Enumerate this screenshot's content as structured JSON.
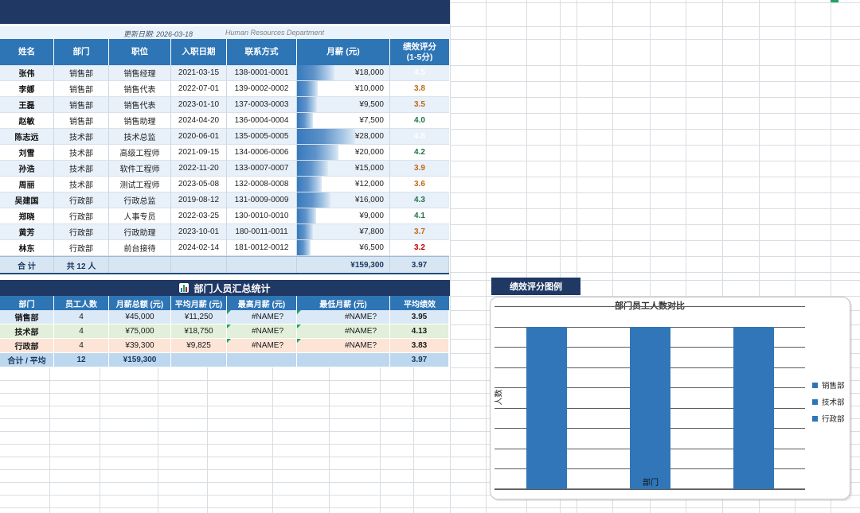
{
  "meta": {
    "update_text": "更新日期: 2026-03-18",
    "org_text": "Human Resources Department"
  },
  "colors": {
    "accent": "#2E75B6",
    "banner": "#1F3864",
    "row_alt": "#E8F0F9",
    "total_row": "#D8E6F3",
    "tint_blue": "#DBE8F6",
    "tint_green": "#E2EFDA",
    "tint_peach": "#FCE4D6",
    "tint_total": "#BDD7EE",
    "score_green": "#1F7246",
    "score_orange": "#BE6A15",
    "score_red": "#C00000",
    "error_marker": "#21A366",
    "bar_color": "#3076B8"
  },
  "employee_table": {
    "columns": [
      "姓名",
      "部门",
      "职位",
      "入职日期",
      "联系方式",
      "月薪 (元)",
      "绩效评分\n(1-5分)"
    ],
    "rows": [
      {
        "name": "张伟",
        "dept": "销售部",
        "title": "销售经理",
        "hire_date": "2021-03-15",
        "phone": "138-0001-0001",
        "salary": "¥18,000",
        "salary_value": 18000,
        "score": "4.5",
        "score_value": 4.5
      },
      {
        "name": "李娜",
        "dept": "销售部",
        "title": "销售代表",
        "hire_date": "2022-07-01",
        "phone": "139-0002-0002",
        "salary": "¥10,000",
        "salary_value": 10000,
        "score": "3.8",
        "score_value": 3.8
      },
      {
        "name": "王磊",
        "dept": "销售部",
        "title": "销售代表",
        "hire_date": "2023-01-10",
        "phone": "137-0003-0003",
        "salary": "¥9,500",
        "salary_value": 9500,
        "score": "3.5",
        "score_value": 3.5
      },
      {
        "name": "赵敏",
        "dept": "销售部",
        "title": "销售助理",
        "hire_date": "2024-04-20",
        "phone": "136-0004-0004",
        "salary": "¥7,500",
        "salary_value": 7500,
        "score": "4.0",
        "score_value": 4.0
      },
      {
        "name": "陈志远",
        "dept": "技术部",
        "title": "技术总监",
        "hire_date": "2020-06-01",
        "phone": "135-0005-0005",
        "salary": "¥28,000",
        "salary_value": 28000,
        "score": "4.8",
        "score_value": 4.8
      },
      {
        "name": "刘雪",
        "dept": "技术部",
        "title": "高级工程师",
        "hire_date": "2021-09-15",
        "phone": "134-0006-0006",
        "salary": "¥20,000",
        "salary_value": 20000,
        "score": "4.2",
        "score_value": 4.2
      },
      {
        "name": "孙浩",
        "dept": "技术部",
        "title": "软件工程师",
        "hire_date": "2022-11-20",
        "phone": "133-0007-0007",
        "salary": "¥15,000",
        "salary_value": 15000,
        "score": "3.9",
        "score_value": 3.9
      },
      {
        "name": "周丽",
        "dept": "技术部",
        "title": "测试工程师",
        "hire_date": "2023-05-08",
        "phone": "132-0008-0008",
        "salary": "¥12,000",
        "salary_value": 12000,
        "score": "3.6",
        "score_value": 3.6
      },
      {
        "name": "吴建国",
        "dept": "行政部",
        "title": "行政总监",
        "hire_date": "2019-08-12",
        "phone": "131-0009-0009",
        "salary": "¥16,000",
        "salary_value": 16000,
        "score": "4.3",
        "score_value": 4.3
      },
      {
        "name": "郑晓",
        "dept": "行政部",
        "title": "人事专员",
        "hire_date": "2022-03-25",
        "phone": "130-0010-0010",
        "salary": "¥9,000",
        "salary_value": 9000,
        "score": "4.1",
        "score_value": 4.1
      },
      {
        "name": "黄芳",
        "dept": "行政部",
        "title": "行政助理",
        "hire_date": "2023-10-01",
        "phone": "180-0011-0011",
        "salary": "¥7,800",
        "salary_value": 7800,
        "score": "3.7",
        "score_value": 3.7
      },
      {
        "name": "林东",
        "dept": "行政部",
        "title": "前台接待",
        "hire_date": "2024-02-14",
        "phone": "181-0012-0012",
        "salary": "¥6,500",
        "salary_value": 6500,
        "score": "3.2",
        "score_value": 3.2
      }
    ],
    "total": {
      "label": "合  计",
      "count": "共 12 人",
      "salary": "¥159,300",
      "score": "3.97"
    }
  },
  "summary_table": {
    "title": "部门人员汇总统计",
    "columns": [
      "部门",
      "员工人数",
      "月薪总额 (元)",
      "平均月薪 (元)",
      "最高月薪 (元)",
      "最低月薪 (元)",
      "平均绩效"
    ],
    "rows": [
      {
        "dept": "销售部",
        "count": "4",
        "total": "¥45,000",
        "avg": "¥11,250",
        "max": "#NAME?",
        "min": "#NAME?",
        "score": "3.95",
        "tint": "blue"
      },
      {
        "dept": "技术部",
        "count": "4",
        "total": "¥75,000",
        "avg": "¥18,750",
        "max": "#NAME?",
        "min": "#NAME?",
        "score": "4.13",
        "tint": "green"
      },
      {
        "dept": "行政部",
        "count": "4",
        "total": "¥39,300",
        "avg": "¥9,825",
        "max": "#NAME?",
        "min": "#NAME?",
        "score": "3.83",
        "tint": "peach"
      }
    ],
    "total_row": {
      "dept": "合计 / 平均",
      "count": "12",
      "total": "¥159,300",
      "avg": "",
      "max": "",
      "min": "",
      "score": "3.97",
      "tint": "total"
    }
  },
  "legend_tab": {
    "label": "绩效评分图例"
  },
  "chart_data": {
    "type": "bar",
    "title": "部门员工人数对比",
    "categories": [
      "销售部",
      "技术部",
      "行政部"
    ],
    "values": [
      4,
      4,
      4
    ],
    "xlabel": "部门",
    "ylabel": "人数",
    "ylim": [
      0,
      4.5
    ],
    "ytick_step": 0.5,
    "grid": true,
    "legend_position": "right",
    "legend_entries": [
      "销售部",
      "技术部",
      "行政部"
    ]
  }
}
